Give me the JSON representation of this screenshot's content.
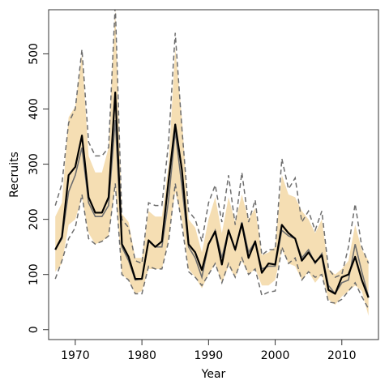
{
  "chart_data": {
    "type": "line",
    "title": "",
    "xlabel": "Year",
    "ylabel": "Recruits",
    "xlim": [
      1966,
      2015.5
    ],
    "ylim": [
      -18,
      580
    ],
    "xticks": [
      1970,
      1980,
      1990,
      2000,
      2010
    ],
    "yticks": [
      0,
      100,
      200,
      300,
      400,
      500
    ],
    "grid": false,
    "legend": "none",
    "colors": {
      "band": "#f5deb3",
      "mean_line": "#000000",
      "median_line": "#6e6e6e",
      "bound_lines": "#6e6e6e",
      "axis": "#333333"
    },
    "x": [
      1967,
      1968,
      1969,
      1970,
      1971,
      1972,
      1973,
      1974,
      1975,
      1976,
      1977,
      1978,
      1979,
      1980,
      1981,
      1982,
      1983,
      1984,
      1985,
      1986,
      1987,
      1988,
      1989,
      1990,
      1991,
      1992,
      1993,
      1994,
      1995,
      1996,
      1997,
      1998,
      1999,
      2000,
      2001,
      2002,
      2003,
      2004,
      2005,
      2006,
      2007,
      2008,
      2009,
      2010,
      2011,
      2012,
      2013,
      2014
    ],
    "series": [
      {
        "role": "upper-band",
        "values": [
          205,
          230,
          385,
          405,
          500,
          315,
          285,
          285,
          330,
          580,
          210,
          195,
          130,
          130,
          215,
          205,
          205,
          300,
          510,
          385,
          200,
          185,
          140,
          200,
          240,
          175,
          240,
          195,
          245,
          200,
          220,
          135,
          140,
          150,
          280,
          245,
          240,
          215,
          200,
          175,
          200,
          110,
          100,
          110,
          125,
          190,
          145,
          125
        ]
      },
      {
        "role": "lower-band",
        "values": [
          105,
          120,
          190,
          200,
          240,
          175,
          155,
          160,
          170,
          260,
          100,
          90,
          65,
          70,
          110,
          110,
          110,
          165,
          250,
          200,
          110,
          95,
          75,
          100,
          120,
          85,
          115,
          95,
          125,
          100,
          110,
          80,
          80,
          90,
          145,
          120,
          115,
          90,
          105,
          85,
          100,
          55,
          45,
          60,
          70,
          80,
          70,
          25
        ]
      },
      {
        "role": "upper-dashed",
        "values": [
          225,
          265,
          375,
          400,
          508,
          340,
          315,
          315,
          330,
          590,
          200,
          185,
          125,
          120,
          230,
          225,
          225,
          340,
          538,
          365,
          215,
          200,
          160,
          230,
          262,
          195,
          280,
          190,
          285,
          195,
          235,
          135,
          145,
          145,
          310,
          255,
          275,
          195,
          215,
          180,
          215,
          110,
          95,
          100,
          150,
          228,
          150,
          120
        ]
      },
      {
        "role": "lower-dashed",
        "values": [
          92,
          125,
          165,
          185,
          245,
          165,
          155,
          160,
          170,
          265,
          100,
          90,
          65,
          65,
          115,
          110,
          110,
          160,
          265,
          190,
          105,
          95,
          80,
          100,
          120,
          85,
          120,
          95,
          130,
          100,
          110,
          62,
          68,
          70,
          150,
          120,
          130,
          90,
          105,
          95,
          100,
          50,
          48,
          55,
          70,
          85,
          60,
          38
        ]
      },
      {
        "role": "median",
        "values": [
          145,
          165,
          250,
          280,
          330,
          230,
          205,
          205,
          225,
          380,
          150,
          125,
          90,
          92,
          160,
          150,
          150,
          235,
          360,
          260,
          150,
          130,
          95,
          155,
          180,
          130,
          180,
          145,
          195,
          140,
          160,
          110,
          115,
          115,
          180,
          170,
          165,
          130,
          145,
          120,
          138,
          80,
          65,
          85,
          90,
          155,
          105,
          60
        ]
      },
      {
        "role": "mean",
        "values": [
          145,
          168,
          280,
          295,
          352,
          240,
          212,
          212,
          240,
          430,
          155,
          132,
          92,
          92,
          162,
          150,
          160,
          270,
          372,
          290,
          155,
          140,
          108,
          155,
          178,
          118,
          180,
          145,
          192,
          130,
          160,
          103,
          120,
          118,
          190,
          175,
          165,
          125,
          140,
          122,
          135,
          72,
          65,
          95,
          100,
          132,
          90,
          58
        ]
      }
    ]
  }
}
